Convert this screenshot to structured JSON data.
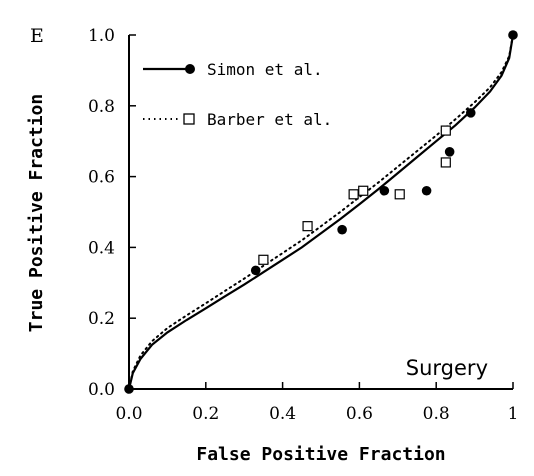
{
  "chart_data": {
    "type": "scatter",
    "panel_label": "E",
    "xlabel": "False Positive Fraction",
    "ylabel": "True Positive Fraction",
    "xlim": [
      0,
      1
    ],
    "ylim": [
      0,
      1
    ],
    "x_ticks": [
      0,
      0.2,
      0.4,
      0.6,
      0.8,
      1
    ],
    "x_tick_labels": [
      "0.0",
      "0.2",
      "0.4",
      "0.6",
      "0.8",
      "1"
    ],
    "y_ticks": [
      0,
      0.2,
      0.4,
      0.6,
      0.8,
      1
    ],
    "y_tick_labels": [
      "0.0",
      "0.2",
      "0.4",
      "0.6",
      "0.8",
      "1.0"
    ],
    "grid": false,
    "legend_position": "top-left",
    "annotation": "Surgery",
    "series": [
      {
        "name": "Simon et al.",
        "marker": "filled-circle",
        "line": "solid",
        "points": [
          {
            "x": 0,
            "y": 0
          },
          {
            "x": 0.33,
            "y": 0.335
          },
          {
            "x": 0.555,
            "y": 0.45
          },
          {
            "x": 0.665,
            "y": 0.56
          },
          {
            "x": 0.775,
            "y": 0.56
          },
          {
            "x": 0.835,
            "y": 0.67
          },
          {
            "x": 0.89,
            "y": 0.78
          },
          {
            "x": 1,
            "y": 1
          }
        ],
        "curve": [
          {
            "x": 0,
            "y": 0
          },
          {
            "x": 0.01,
            "y": 0.045
          },
          {
            "x": 0.03,
            "y": 0.085
          },
          {
            "x": 0.06,
            "y": 0.125
          },
          {
            "x": 0.1,
            "y": 0.16
          },
          {
            "x": 0.15,
            "y": 0.195
          },
          {
            "x": 0.2,
            "y": 0.228
          },
          {
            "x": 0.25,
            "y": 0.262
          },
          {
            "x": 0.3,
            "y": 0.295
          },
          {
            "x": 0.35,
            "y": 0.33
          },
          {
            "x": 0.4,
            "y": 0.365
          },
          {
            "x": 0.45,
            "y": 0.4
          },
          {
            "x": 0.5,
            "y": 0.44
          },
          {
            "x": 0.55,
            "y": 0.48
          },
          {
            "x": 0.6,
            "y": 0.522
          },
          {
            "x": 0.65,
            "y": 0.565
          },
          {
            "x": 0.7,
            "y": 0.61
          },
          {
            "x": 0.75,
            "y": 0.655
          },
          {
            "x": 0.8,
            "y": 0.7
          },
          {
            "x": 0.85,
            "y": 0.745
          },
          {
            "x": 0.9,
            "y": 0.795
          },
          {
            "x": 0.94,
            "y": 0.84
          },
          {
            "x": 0.97,
            "y": 0.885
          },
          {
            "x": 0.99,
            "y": 0.935
          },
          {
            "x": 1,
            "y": 1
          }
        ]
      },
      {
        "name": "Barber et al.",
        "marker": "open-square",
        "line": "dotted",
        "points": [
          {
            "x": 0.35,
            "y": 0.365
          },
          {
            "x": 0.465,
            "y": 0.46
          },
          {
            "x": 0.585,
            "y": 0.55
          },
          {
            "x": 0.61,
            "y": 0.56
          },
          {
            "x": 0.705,
            "y": 0.55
          },
          {
            "x": 0.825,
            "y": 0.73
          },
          {
            "x": 0.825,
            "y": 0.64
          }
        ],
        "curve": [
          {
            "x": 0,
            "y": 0
          },
          {
            "x": 0.01,
            "y": 0.05
          },
          {
            "x": 0.03,
            "y": 0.095
          },
          {
            "x": 0.06,
            "y": 0.135
          },
          {
            "x": 0.1,
            "y": 0.172
          },
          {
            "x": 0.15,
            "y": 0.208
          },
          {
            "x": 0.2,
            "y": 0.242
          },
          {
            "x": 0.25,
            "y": 0.277
          },
          {
            "x": 0.3,
            "y": 0.312
          },
          {
            "x": 0.35,
            "y": 0.348
          },
          {
            "x": 0.4,
            "y": 0.384
          },
          {
            "x": 0.45,
            "y": 0.42
          },
          {
            "x": 0.5,
            "y": 0.46
          },
          {
            "x": 0.55,
            "y": 0.5
          },
          {
            "x": 0.6,
            "y": 0.542
          },
          {
            "x": 0.65,
            "y": 0.584
          },
          {
            "x": 0.7,
            "y": 0.628
          },
          {
            "x": 0.75,
            "y": 0.672
          },
          {
            "x": 0.8,
            "y": 0.716
          },
          {
            "x": 0.85,
            "y": 0.762
          },
          {
            "x": 0.9,
            "y": 0.81
          },
          {
            "x": 0.94,
            "y": 0.852
          },
          {
            "x": 0.97,
            "y": 0.895
          },
          {
            "x": 0.99,
            "y": 0.94
          },
          {
            "x": 1,
            "y": 1
          }
        ]
      }
    ]
  }
}
